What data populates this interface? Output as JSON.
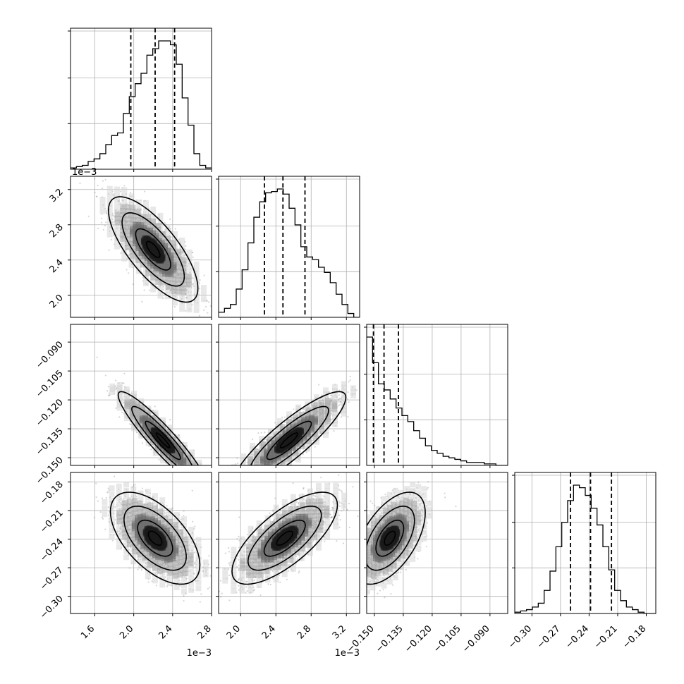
{
  "chart_data": {
    "type": "scatter",
    "subtype": "corner-plot",
    "title": "",
    "grid": true,
    "parameters": [
      {
        "ticks": [
          1.6,
          2.0,
          2.4,
          2.8
        ],
        "tick_labels": [
          "1.6",
          "2.0",
          "2.4",
          "2.8"
        ],
        "range": [
          1.35,
          2.8
        ],
        "offset_text": "1e−3"
      },
      {
        "ticks": [
          2.0,
          2.4,
          2.8,
          3.2
        ],
        "tick_labels": [
          "2.0",
          "2.4",
          "2.8",
          "3.2"
        ],
        "range": [
          1.75,
          3.35
        ],
        "offset_text": "1e−3"
      },
      {
        "ticks": [
          -0.15,
          -0.135,
          -0.12,
          -0.105,
          -0.09
        ],
        "tick_labels": [
          "−0.150",
          "−0.135",
          "−0.120",
          "−0.105",
          "−0.090"
        ],
        "range": [
          -0.154,
          -0.0808
        ],
        "offset_text": ""
      },
      {
        "ticks": [
          -0.3,
          -0.27,
          -0.24,
          -0.21,
          -0.18
        ],
        "tick_labels": [
          "−0.30",
          "−0.27",
          "−0.24",
          "−0.21",
          "−0.18"
        ],
        "range": [
          -0.318,
          -0.17
        ],
        "offset_text": ""
      }
    ],
    "quantiles": [
      [
        1.97,
        2.22,
        2.42
      ],
      [
        2.27,
        2.48,
        2.73
      ],
      [
        -0.1505,
        -0.145,
        -0.1375
      ],
      [
        -0.2595,
        -0.2385,
        -0.2165
      ]
    ],
    "histograms": [
      [
        1,
        2,
        3,
        6,
        8,
        12,
        19,
        26,
        28,
        43,
        56,
        66,
        74,
        88,
        93,
        99,
        99,
        96,
        81,
        55,
        34,
        12,
        3,
        1
      ],
      [
        4,
        7,
        10,
        22,
        37,
        58,
        78,
        90,
        97,
        98,
        100,
        96,
        85,
        72,
        55,
        47,
        45,
        39,
        35,
        27,
        18,
        10,
        3,
        0
      ],
      [
        85,
        68,
        54,
        50,
        44,
        38,
        33,
        29,
        23,
        18,
        13,
        10,
        8,
        6,
        5,
        4,
        3,
        2,
        2,
        2,
        1,
        1,
        0,
        0
      ],
      [
        1,
        2,
        3,
        5,
        8,
        18,
        33,
        52,
        71,
        88,
        100,
        98,
        92,
        82,
        69,
        52,
        34,
        18,
        10,
        5,
        3,
        1,
        0,
        0
      ]
    ],
    "pair_stats": [
      {
        "i": 1,
        "j": 0,
        "mean": [
          2.2,
          2.52
        ],
        "sd": [
          0.2,
          0.26
        ],
        "corr": -0.74
      },
      {
        "i": 2,
        "j": 0,
        "mean": [
          2.3,
          -0.141
        ],
        "sd": [
          0.2,
          0.011
        ],
        "corr": -0.93
      },
      {
        "i": 2,
        "j": 1,
        "mean": [
          2.55,
          -0.141
        ],
        "sd": [
          0.28,
          0.011
        ],
        "corr": 0.88
      },
      {
        "i": 3,
        "j": 0,
        "mean": [
          2.22,
          -0.239
        ],
        "sd": [
          0.2,
          0.021
        ],
        "corr": -0.58
      },
      {
        "i": 3,
        "j": 1,
        "mean": [
          2.5,
          -0.239
        ],
        "sd": [
          0.26,
          0.021
        ],
        "corr": 0.72
      },
      {
        "i": 3,
        "j": 2,
        "mean": [
          -0.142,
          -0.239
        ],
        "sd": [
          0.008,
          0.021
        ],
        "corr": 0.55
      }
    ]
  }
}
